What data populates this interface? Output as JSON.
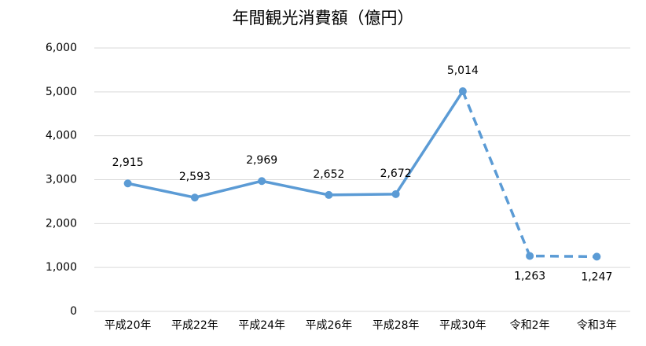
{
  "chart_data": {
    "type": "line",
    "title": "年間観光消費額（億円）",
    "categories": [
      "平成20年",
      "平成22年",
      "平成24年",
      "平成26年",
      "平成28年",
      "平成30年",
      "令和2年",
      "令和3年"
    ],
    "series": [
      {
        "color": "#5b9bd5",
        "values": [
          2915,
          2593,
          2969,
          2652,
          2672,
          5014,
          1263,
          1247
        ],
        "value_labels": [
          "2,915",
          "2,593",
          "2,969",
          "2,652",
          "2,672",
          "5,014",
          "1,263",
          "1,247"
        ],
        "dashed_from": 5
      }
    ],
    "ylim": [
      0,
      6000
    ],
    "yticks": [
      0,
      {
        "value": 1000,
        "label": "1,000"
      },
      {
        "value": 2000,
        "label": "2,000"
      },
      {
        "value": 3000,
        "label": "3,000"
      },
      {
        "value": 4000,
        "label": "4,000"
      },
      {
        "value": 5000,
        "label": "5,000"
      },
      {
        "value": 6000,
        "label": "6,000"
      }
    ],
    "grid": true
  }
}
